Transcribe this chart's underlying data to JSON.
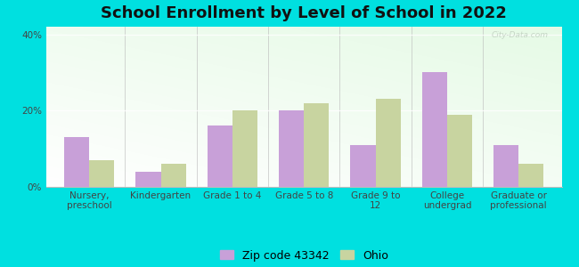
{
  "title": "School Enrollment by Level of School in 2022",
  "categories": [
    "Nursery,\npreschool",
    "Kindergarten",
    "Grade 1 to 4",
    "Grade 5 to 8",
    "Grade 9 to\n12",
    "College\nundergrad",
    "Graduate or\nprofessional"
  ],
  "zip_values": [
    13,
    4,
    16,
    20,
    11,
    30,
    11
  ],
  "ohio_values": [
    7,
    6,
    20,
    22,
    23,
    19,
    6
  ],
  "zip_color": "#c8a0d8",
  "ohio_color": "#c8d4a0",
  "background_outer": "#00e0e0",
  "ylim": [
    0,
    42
  ],
  "yticks": [
    0,
    20,
    40
  ],
  "ytick_labels": [
    "0%",
    "20%",
    "40%"
  ],
  "legend_zip_label": "Zip code 43342",
  "legend_ohio_label": "Ohio",
  "bar_width": 0.35,
  "title_fontsize": 13,
  "tick_fontsize": 7.5,
  "legend_fontsize": 9
}
